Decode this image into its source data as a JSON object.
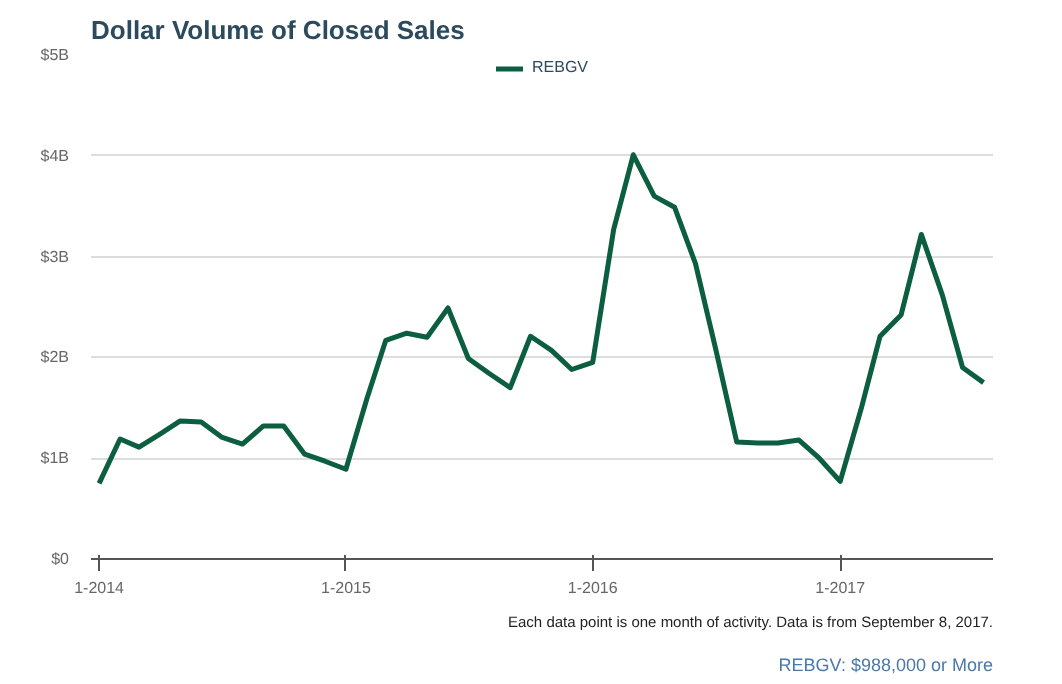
{
  "chart_data": {
    "type": "line",
    "title": "Dollar Volume of Closed Sales",
    "x": [
      "2014-01",
      "2014-02",
      "2014-03",
      "2014-04",
      "2014-05",
      "2014-06",
      "2014-07",
      "2014-08",
      "2014-09",
      "2014-10",
      "2014-11",
      "2014-12",
      "2015-01",
      "2015-02",
      "2015-03",
      "2015-04",
      "2015-05",
      "2015-06",
      "2015-07",
      "2015-08",
      "2015-09",
      "2015-10",
      "2015-11",
      "2015-12",
      "2016-01",
      "2016-02",
      "2016-03",
      "2016-04",
      "2016-05",
      "2016-06",
      "2016-07",
      "2016-08",
      "2016-09",
      "2016-10",
      "2016-11",
      "2016-12",
      "2017-01",
      "2017-02",
      "2017-03",
      "2017-04",
      "2017-05",
      "2017-06",
      "2017-07",
      "2017-08"
    ],
    "series": [
      {
        "name": "REBGV",
        "color": "#0b5e3f",
        "values": [
          0.75,
          1.19,
          1.11,
          1.24,
          1.37,
          1.36,
          1.21,
          1.14,
          1.32,
          1.32,
          1.04,
          0.97,
          0.89,
          1.59,
          2.17,
          2.24,
          2.2,
          2.49,
          1.99,
          1.84,
          1.7,
          2.21,
          2.07,
          1.88,
          1.95,
          3.27,
          4.01,
          3.6,
          3.49,
          2.93,
          2.08,
          1.16,
          1.15,
          1.15,
          1.18,
          1.0,
          0.77,
          1.49,
          2.21,
          2.42,
          3.22,
          2.62,
          1.9,
          1.75
        ]
      }
    ],
    "xlim": [
      "2013-12-20",
      "2017-08-15"
    ],
    "xticks": [
      {
        "value": "2014-01",
        "label": "1-2014"
      },
      {
        "value": "2015-01",
        "label": "1-2015"
      },
      {
        "value": "2016-01",
        "label": "1-2016"
      },
      {
        "value": "2017-01",
        "label": "1-2017"
      }
    ],
    "ylim": [
      0,
      5
    ],
    "yticks": [
      {
        "value": 0,
        "label": "$0"
      },
      {
        "value": 1,
        "label": "$1B"
      },
      {
        "value": 2,
        "label": "$2B"
      },
      {
        "value": 3,
        "label": "$3B"
      },
      {
        "value": 4,
        "label": "$4B"
      },
      {
        "value": 5,
        "label": "$5B"
      }
    ],
    "grid": "y",
    "legend": "top",
    "marker": "none",
    "line_style": "solid",
    "annotations": [
      "REBGV: $988,000 or More",
      "Each data point is one month of activity. Data is from September 8, 2017."
    ]
  }
}
